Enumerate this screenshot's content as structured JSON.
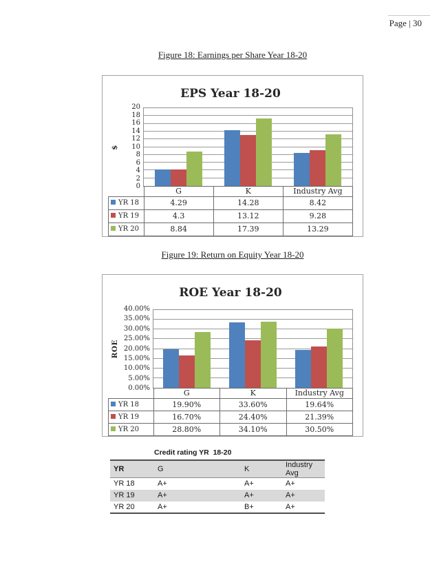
{
  "page": {
    "page_number_label": "Page | 30"
  },
  "figures": [
    {
      "caption": "Figure 18: Earnings per Share Year 18-20"
    },
    {
      "caption": "Figure 19: Return on Equity Year 18-20"
    }
  ],
  "colors": {
    "yr18_blue": "#4F81BD",
    "yr19_red": "#C0504D",
    "yr20_green": "#9BBB59"
  },
  "chart_data": [
    {
      "type": "bar",
      "title": "EPS Year 18-20",
      "ylabel": "$",
      "xlabel": "",
      "categories": [
        "G",
        "K",
        "Industry Avg"
      ],
      "series": [
        {
          "name": "YR 18",
          "color": "#4F81BD",
          "values": [
            4.29,
            14.28,
            8.42
          ],
          "labels": [
            "4.29",
            "14.28",
            "8.42"
          ]
        },
        {
          "name": "YR 19",
          "color": "#C0504D",
          "values": [
            4.3,
            13.12,
            9.28
          ],
          "labels": [
            "4.3",
            "13.12",
            "9.28"
          ]
        },
        {
          "name": "YR 20",
          "color": "#9BBB59",
          "values": [
            8.84,
            17.39,
            13.29
          ],
          "labels": [
            "8.84",
            "17.39",
            "13.29"
          ]
        }
      ],
      "ylim": [
        0,
        20
      ],
      "ytick_step": 2,
      "ytick_labels": [
        "0",
        "2",
        "4",
        "6",
        "8",
        "10",
        "12",
        "14",
        "16",
        "18",
        "20"
      ],
      "grid": true,
      "legend_position": "table-left"
    },
    {
      "type": "bar",
      "title": "ROE Year 18-20",
      "ylabel": "ROE",
      "xlabel": "",
      "categories": [
        "G",
        "K",
        "Industry Avg"
      ],
      "series": [
        {
          "name": "YR 18",
          "color": "#4F81BD",
          "values": [
            19.9,
            33.6,
            19.64
          ],
          "labels": [
            "19.90%",
            "33.60%",
            "19.64%"
          ]
        },
        {
          "name": "YR 19",
          "color": "#C0504D",
          "values": [
            16.7,
            24.4,
            21.39
          ],
          "labels": [
            "16.70%",
            "24.40%",
            "21.39%"
          ]
        },
        {
          "name": "YR 20",
          "color": "#9BBB59",
          "values": [
            28.8,
            34.1,
            30.5
          ],
          "labels": [
            "28.80%",
            "34.10%",
            "30.50%"
          ]
        }
      ],
      "ylim": [
        0,
        40
      ],
      "ytick_step": 5,
      "ytick_labels": [
        "0.00%",
        "5.00%",
        "10.00%",
        "15.00%",
        "20.00%",
        "25.00%",
        "30.00%",
        "35.00%",
        "40.00%"
      ],
      "grid": true,
      "legend_position": "table-left"
    }
  ],
  "credit_table": {
    "title": "Credit rating YR  18-20",
    "headers": [
      "YR",
      "G",
      "K",
      "Industry Avg"
    ],
    "rows": [
      [
        "YR 18",
        "A+",
        "A+",
        "A+"
      ],
      [
        "YR 19",
        "A+",
        "A+",
        "A+"
      ],
      [
        "YR 20",
        "A+",
        "B+",
        "A+"
      ]
    ]
  }
}
